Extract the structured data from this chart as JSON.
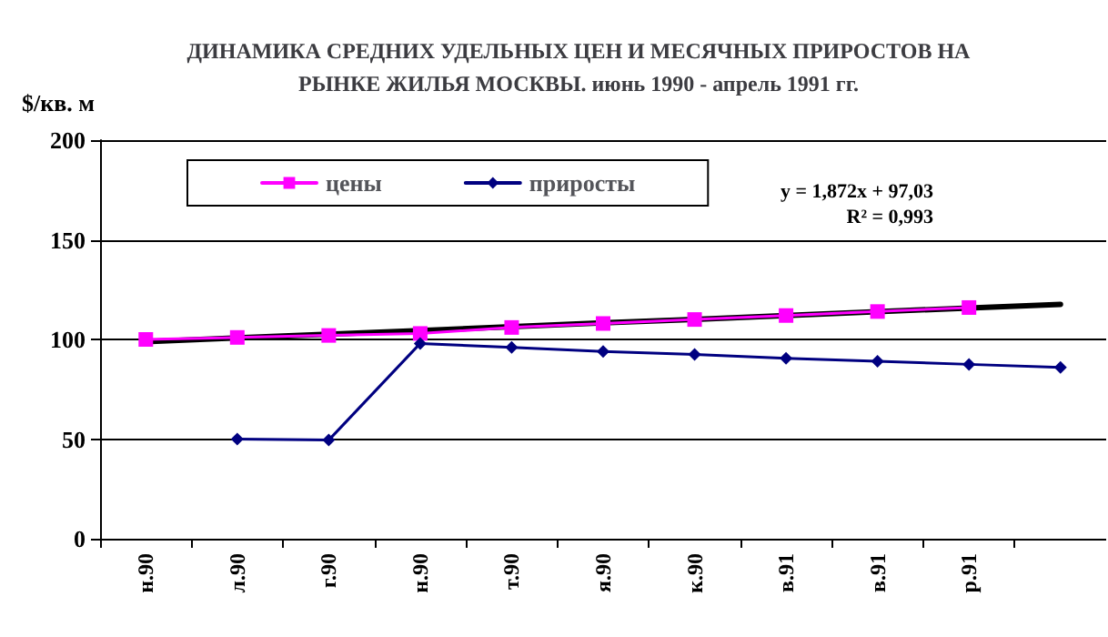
{
  "chart_data": {
    "type": "line",
    "title": "ДИНАМИКА СРЕДНИХ УДЕЛЬНЫХ ЦЕН И МЕСЯЧНЫХ ПРИРОСТОВ НА\nРЫНКЕ ЖИЛЬЯ МОСКВЫ. июнь 1990 - апрель 1991 гг.",
    "ylabel": "$/кв. м",
    "categories": [
      "н.90",
      "л.90",
      "г.90",
      "н.90",
      "т.90",
      "я.90",
      "к.90",
      "в.91",
      "в.91",
      "р.91",
      null
    ],
    "series": [
      {
        "type": "line",
        "color": "#000000",
        "marker": "none",
        "values": [
          98.9,
          100.8,
          102.6,
          104.5,
          106.4,
          108.3,
          110.1,
          112.0,
          113.9,
          115.8,
          117.6
        ]
      },
      {
        "name": "цены",
        "color": "#ff00ff",
        "marker": "square",
        "values": [
          100,
          101,
          102,
          103,
          106,
          108,
          110,
          112,
          114,
          116,
          null
        ]
      },
      {
        "name": "приросты",
        "color": "#000080",
        "marker": "diamond",
        "values": [
          null,
          50,
          49.5,
          98,
          96,
          94,
          92.5,
          90.5,
          89,
          87.5,
          86
        ]
      }
    ],
    "ylim": [
      0,
      200
    ],
    "yticks": [
      0,
      50,
      100,
      150,
      200
    ],
    "grid": "y",
    "legend": "top left",
    "annotations": [
      "y = 1,872x + 97,03",
      "R² = 0,993"
    ]
  }
}
